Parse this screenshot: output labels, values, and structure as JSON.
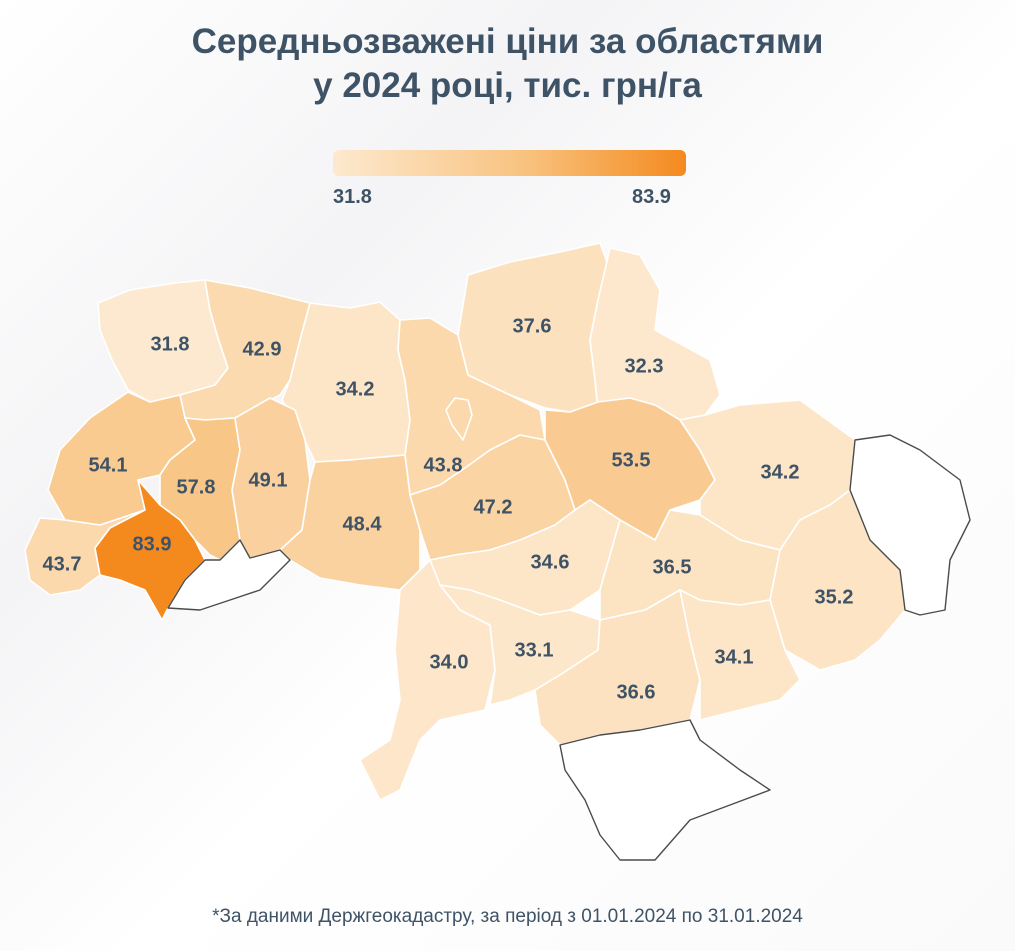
{
  "title": {
    "line1": "Середньозважені ціни за областями",
    "line2": "у 2024 році, тис. грн/га"
  },
  "legend": {
    "min": "31.8",
    "max": "83.9",
    "colors": [
      "#fde9cf",
      "#f8c27e",
      "#f48a1e"
    ]
  },
  "regions": [
    {
      "id": "volyn",
      "value": 31.8,
      "label": "31.8"
    },
    {
      "id": "rivne",
      "value": 42.9,
      "label": "42.9"
    },
    {
      "id": "zhytomyr",
      "value": 34.2,
      "label": "34.2"
    },
    {
      "id": "kyiv",
      "value": 43.8,
      "label": "43.8"
    },
    {
      "id": "chernihiv",
      "value": 37.6,
      "label": "37.6"
    },
    {
      "id": "sumy",
      "value": 32.3,
      "label": "32.3"
    },
    {
      "id": "lviv",
      "value": 54.1,
      "label": "54.1"
    },
    {
      "id": "ternopil",
      "value": 57.8,
      "label": "57.8"
    },
    {
      "id": "khmelnytskyi",
      "value": 49.1,
      "label": "49.1"
    },
    {
      "id": "vinnytsia",
      "value": 48.4,
      "label": "48.4"
    },
    {
      "id": "cherkasy",
      "value": 47.2,
      "label": "47.2"
    },
    {
      "id": "poltava",
      "value": 53.5,
      "label": "53.5"
    },
    {
      "id": "kharkiv",
      "value": 34.2,
      "label": "34.2"
    },
    {
      "id": "zakarpattia",
      "value": 43.7,
      "label": "43.7"
    },
    {
      "id": "ivano-frankivsk",
      "value": 83.9,
      "label": "83.9"
    },
    {
      "id": "chernivtsi",
      "value": null,
      "label": ""
    },
    {
      "id": "kirovohrad",
      "value": 34.6,
      "label": "34.6"
    },
    {
      "id": "dnipropetrovsk",
      "value": 36.5,
      "label": "36.5"
    },
    {
      "id": "luhansk-donetsk",
      "value": 35.2,
      "label": "35.2"
    },
    {
      "id": "odesa",
      "value": 34.0,
      "label": "34.0"
    },
    {
      "id": "mykolaiv",
      "value": 33.1,
      "label": "33.1"
    },
    {
      "id": "kherson",
      "value": 36.6,
      "label": "36.6"
    },
    {
      "id": "zaporizhzhia",
      "value": 34.1,
      "label": "34.1"
    },
    {
      "id": "luhansk-occupied",
      "value": null,
      "label": ""
    },
    {
      "id": "crimea",
      "value": null,
      "label": ""
    }
  ],
  "footnote": "*За даними Держгеокадастру, за період з 01.01.2024 по 31.01.2024"
}
